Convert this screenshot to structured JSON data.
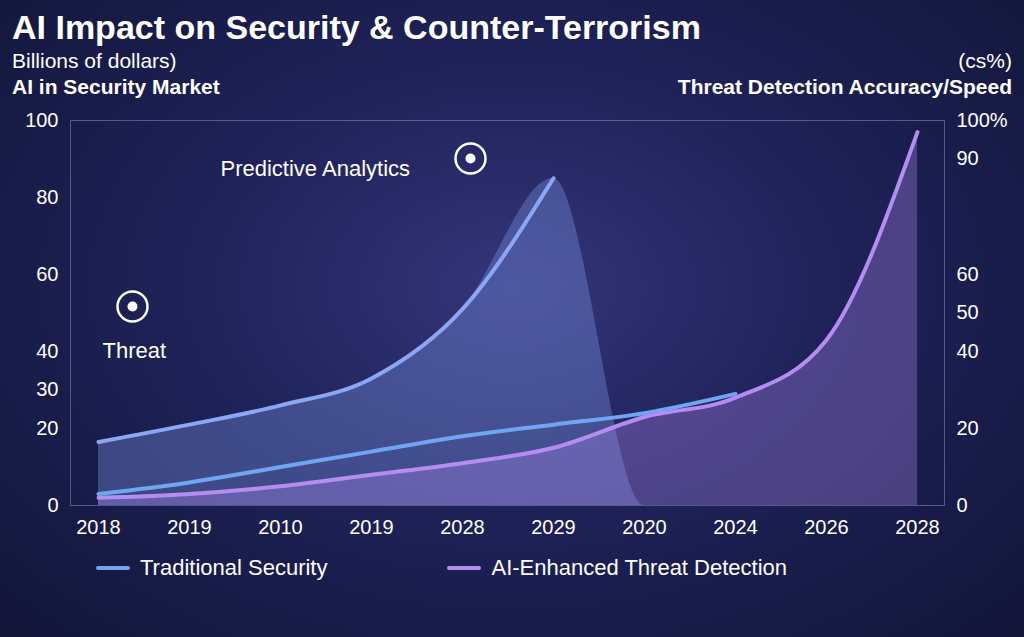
{
  "chart_data": {
    "type": "line",
    "title": "AI Impact on Security & Counter-Terrorism",
    "y_unit": "Billions of dollars)",
    "ylabel": "AI in Security Market",
    "y2_unit": "(cs%)",
    "y2label": "Threat Detection Accuracy/Speed",
    "annotations": [
      "Threat",
      "Predictive Analytics"
    ],
    "categories": [
      "2018",
      "2019",
      "2010",
      "2019",
      "2028",
      "2029",
      "2020",
      "2024",
      "2026",
      "2028"
    ],
    "series": [
      {
        "type": "area",
        "color": "#8aa6f5",
        "values": [
          16.5,
          21,
          26,
          33,
          51,
          85,
          null,
          null,
          null,
          null
        ]
      },
      {
        "name": "Traditional Security",
        "type": "line",
        "axis": "y2",
        "color": "#6ea6f2",
        "values": [
          3,
          6,
          10,
          14,
          18,
          21,
          24,
          29,
          null,
          null
        ]
      },
      {
        "name": "AI-Enhanced Threat Detection",
        "type": "area",
        "axis": "y2",
        "color": "#b58cf2",
        "values": [
          2,
          3,
          5,
          8,
          11,
          15,
          23,
          28,
          43,
          97
        ]
      }
    ],
    "ylim": [
      0,
      100
    ],
    "yticks": [
      0,
      20,
      30,
      40,
      60,
      80,
      100
    ],
    "y2lim": [
      0,
      100
    ],
    "y2ticks": [
      0,
      20,
      40,
      50,
      60,
      90,
      {
        "value": 100,
        "label": "100%"
      }
    ],
    "grid": false,
    "legend": "bottom"
  }
}
